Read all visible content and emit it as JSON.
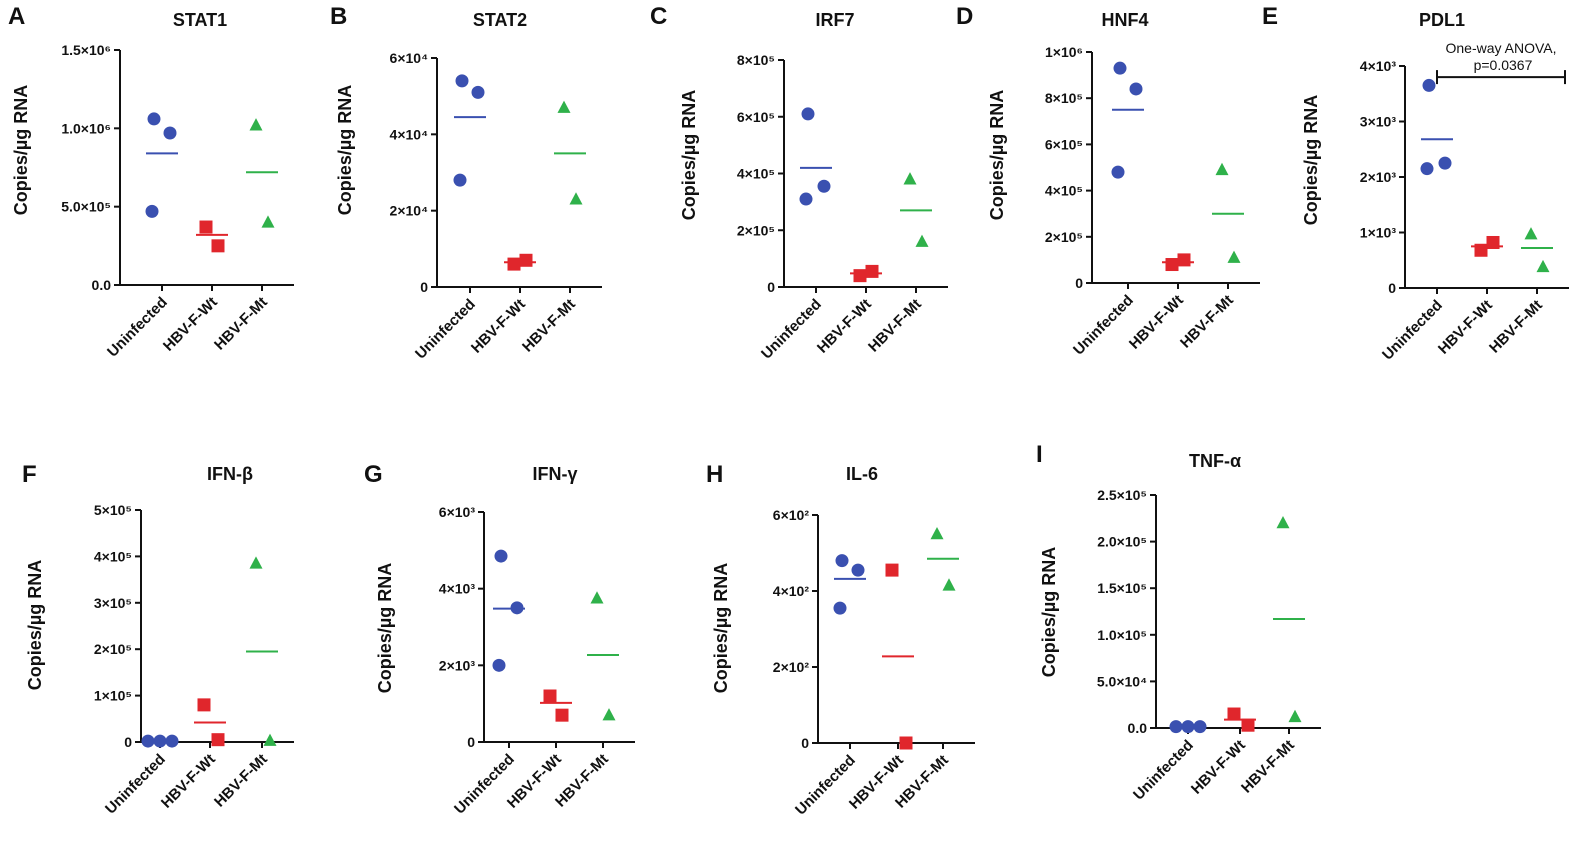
{
  "colors": {
    "Uninfected": "#3a50b0",
    "HBV-F-Wt": "#e0262c",
    "HBV-F-Mt": "#2fb14a",
    "axis": "#111111"
  },
  "chart_data": [
    {
      "panel": "A",
      "type": "scatter",
      "title": "STAT1",
      "ylabel": "Copies/µg RNA",
      "categories": [
        "Uninfected",
        "HBV-F-Wt",
        "HBV-F-Mt"
      ],
      "ylim": [
        0,
        1500000
      ],
      "ticks": [
        {
          "v": 0,
          "label": "0.0"
        },
        {
          "v": 500000,
          "label": "5.0×10⁵"
        },
        {
          "v": 1000000,
          "label": "1.0×10⁶"
        },
        {
          "v": 1500000,
          "label": "1.5×10⁶"
        }
      ],
      "series": [
        {
          "name": "Uninfected",
          "values": [
            1060000,
            970000,
            470000
          ],
          "mean": 840000
        },
        {
          "name": "HBV-F-Wt",
          "values": [
            370000,
            250000
          ],
          "mean": 320000
        },
        {
          "name": "HBV-F-Mt",
          "values": [
            1020000,
            400000
          ],
          "mean": 720000
        }
      ]
    },
    {
      "panel": "B",
      "type": "scatter",
      "title": "STAT2",
      "ylabel": "Copies/µg RNA",
      "categories": [
        "Uninfected",
        "HBV-F-Wt",
        "HBV-F-Mt"
      ],
      "ylim": [
        0,
        60000
      ],
      "ticks": [
        {
          "v": 0,
          "label": "0"
        },
        {
          "v": 20000,
          "label": "2×10⁴"
        },
        {
          "v": 40000,
          "label": "4×10⁴"
        },
        {
          "v": 60000,
          "label": "6×10⁴"
        }
      ],
      "series": [
        {
          "name": "Uninfected",
          "values": [
            54000,
            51000,
            28000
          ],
          "mean": 44500
        },
        {
          "name": "HBV-F-Wt",
          "values": [
            6000,
            7000
          ],
          "mean": 6500
        },
        {
          "name": "HBV-F-Mt",
          "values": [
            47000,
            23000
          ],
          "mean": 35000
        }
      ]
    },
    {
      "panel": "C",
      "type": "scatter",
      "title": "IRF7",
      "ylabel": "Copies/µg RNA",
      "categories": [
        "Uninfected",
        "HBV-F-Wt",
        "HBV-F-Mt"
      ],
      "ylim": [
        0,
        800000
      ],
      "ticks": [
        {
          "v": 0,
          "label": "0"
        },
        {
          "v": 200000,
          "label": "2×10⁵"
        },
        {
          "v": 400000,
          "label": "4×10⁵"
        },
        {
          "v": 600000,
          "label": "6×10⁵"
        },
        {
          "v": 800000,
          "label": "8×10⁵"
        }
      ],
      "series": [
        {
          "name": "Uninfected",
          "values": [
            610000,
            355000,
            310000
          ],
          "mean": 420000
        },
        {
          "name": "HBV-F-Wt",
          "values": [
            40000,
            55000
          ],
          "mean": 48000
        },
        {
          "name": "HBV-F-Mt",
          "values": [
            380000,
            160000
          ],
          "mean": 270000
        }
      ]
    },
    {
      "panel": "D",
      "type": "scatter",
      "title": "HNF4",
      "ylabel": "Copies/µg RNA",
      "categories": [
        "Uninfected",
        "HBV-F-Wt",
        "HBV-F-Mt"
      ],
      "ylim": [
        0,
        1000000
      ],
      "ticks": [
        {
          "v": 0,
          "label": "0"
        },
        {
          "v": 200000,
          "label": "2×10⁵"
        },
        {
          "v": 400000,
          "label": "4×10⁵"
        },
        {
          "v": 600000,
          "label": "6×10⁵"
        },
        {
          "v": 800000,
          "label": "8×10⁵"
        },
        {
          "v": 1000000,
          "label": "1×10⁶"
        }
      ],
      "series": [
        {
          "name": "Uninfected",
          "values": [
            930000,
            840000,
            480000
          ],
          "mean": 750000
        },
        {
          "name": "HBV-F-Wt",
          "values": [
            80000,
            100000
          ],
          "mean": 90000
        },
        {
          "name": "HBV-F-Mt",
          "values": [
            490000,
            110000
          ],
          "mean": 300000
        }
      ]
    },
    {
      "panel": "E",
      "type": "scatter",
      "title": "PDL1",
      "ylabel": "Copies/µg RNA",
      "categories": [
        "Uninfected",
        "HBV-F-Wt",
        "HBV-F-Mt"
      ],
      "ylim": [
        0,
        4000
      ],
      "ticks": [
        {
          "v": 0,
          "label": "0"
        },
        {
          "v": 1000,
          "label": "1×10³"
        },
        {
          "v": 2000,
          "label": "2×10³"
        },
        {
          "v": 3000,
          "label": "3×10³"
        },
        {
          "v": 4000,
          "label": "4×10³"
        }
      ],
      "annotation": {
        "line1": "One-way ANOVA,",
        "line2": "p=0.0367",
        "y": 3800
      },
      "series": [
        {
          "name": "Uninfected",
          "values": [
            3650,
            2250,
            2150
          ],
          "mean": 2680
        },
        {
          "name": "HBV-F-Wt",
          "values": [
            680,
            820
          ],
          "mean": 750
        },
        {
          "name": "HBV-F-Mt",
          "values": [
            970,
            380
          ],
          "mean": 720
        }
      ]
    },
    {
      "panel": "F",
      "type": "scatter",
      "title": "IFN-β",
      "ylabel": "Copies/µg RNA",
      "categories": [
        "Uninfected",
        "HBV-F-Wt",
        "HBV-F-Mt"
      ],
      "ylim": [
        0,
        500000
      ],
      "ticks": [
        {
          "v": 0,
          "label": "0"
        },
        {
          "v": 100000,
          "label": "1×10⁵"
        },
        {
          "v": 200000,
          "label": "2×10⁵"
        },
        {
          "v": 300000,
          "label": "3×10⁵"
        },
        {
          "v": 400000,
          "label": "4×10⁵"
        },
        {
          "v": 500000,
          "label": "5×10⁵"
        }
      ],
      "series": [
        {
          "name": "Uninfected",
          "values": [
            2000,
            2000,
            2000
          ],
          "mean": 2000
        },
        {
          "name": "HBV-F-Wt",
          "values": [
            80000,
            5000
          ],
          "mean": 42000
        },
        {
          "name": "HBV-F-Mt",
          "values": [
            385000,
            3000
          ],
          "mean": 195000
        }
      ]
    },
    {
      "panel": "G",
      "type": "scatter",
      "title": "IFN-γ",
      "ylabel": "Copies/µg RNA",
      "categories": [
        "Uninfected",
        "HBV-F-Wt",
        "HBV-F-Mt"
      ],
      "ylim": [
        0,
        6000
      ],
      "ticks": [
        {
          "v": 0,
          "label": "0"
        },
        {
          "v": 2000,
          "label": "2×10³"
        },
        {
          "v": 4000,
          "label": "4×10³"
        },
        {
          "v": 6000,
          "label": "6×10³"
        }
      ],
      "series": [
        {
          "name": "Uninfected",
          "values": [
            4850,
            3500,
            2000
          ],
          "mean": 3480
        },
        {
          "name": "HBV-F-Wt",
          "values": [
            1200,
            700
          ],
          "mean": 1020
        },
        {
          "name": "HBV-F-Mt",
          "values": [
            3750,
            700
          ],
          "mean": 2270
        }
      ]
    },
    {
      "panel": "H",
      "type": "scatter",
      "title": "IL-6",
      "ylabel": "Copies/µg RNA",
      "categories": [
        "Uninfected",
        "HBV-F-Wt",
        "HBV-F-Mt"
      ],
      "ylim": [
        0,
        600
      ],
      "ticks": [
        {
          "v": 0,
          "label": "0"
        },
        {
          "v": 200,
          "label": "2×10²"
        },
        {
          "v": 400,
          "label": "4×10²"
        },
        {
          "v": 600,
          "label": "6×10²"
        }
      ],
      "series": [
        {
          "name": "Uninfected",
          "values": [
            480,
            455,
            355
          ],
          "mean": 432
        },
        {
          "name": "HBV-F-Wt",
          "values": [
            455,
            0
          ],
          "mean": 228
        },
        {
          "name": "HBV-F-Mt",
          "values": [
            550,
            415
          ],
          "mean": 485
        }
      ]
    },
    {
      "panel": "I",
      "type": "scatter",
      "title": "TNF-α",
      "ylabel": "Copies/µg RNA",
      "categories": [
        "Uninfected",
        "HBV-F-Wt",
        "HBV-F-Mt"
      ],
      "ylim": [
        0,
        250000
      ],
      "ticks": [
        {
          "v": 0,
          "label": "0.0"
        },
        {
          "v": 50000,
          "label": "5.0×10⁴"
        },
        {
          "v": 100000,
          "label": "1.0×10⁵"
        },
        {
          "v": 150000,
          "label": "1.5×10⁵"
        },
        {
          "v": 200000,
          "label": "2.0×10⁵"
        },
        {
          "v": 250000,
          "label": "2.5×10⁵"
        }
      ],
      "series": [
        {
          "name": "Uninfected",
          "values": [
            1500,
            1500,
            1500
          ],
          "mean": 1500
        },
        {
          "name": "HBV-F-Wt",
          "values": [
            15000,
            3000
          ],
          "mean": 9000
        },
        {
          "name": "HBV-F-Mt",
          "values": [
            220000,
            12000
          ],
          "mean": 117000
        }
      ]
    }
  ]
}
